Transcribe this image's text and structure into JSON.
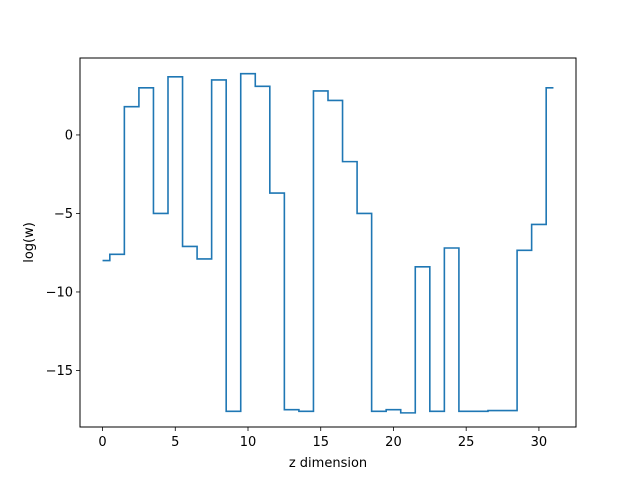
{
  "chart_data": {
    "type": "line",
    "drawstyle": "steps-mid",
    "xlabel": "z dimension",
    "ylabel": "log(w)",
    "xlim": [
      -1.55,
      32.55
    ],
    "ylim": [
      -18.6,
      4.9
    ],
    "xticks": [
      0,
      5,
      10,
      15,
      20,
      25,
      30
    ],
    "yticks": [
      -15,
      -10,
      -5,
      0
    ],
    "ytick_labels": [
      "−15",
      "−10",
      "−5",
      "0"
    ],
    "grid": false,
    "line_color": "#1f77b4",
    "series": [
      {
        "x": [
          0,
          1,
          2,
          3,
          4,
          5,
          6,
          7,
          8,
          9,
          10,
          11,
          12,
          13,
          14,
          15,
          16,
          17,
          18,
          19,
          20,
          21,
          22,
          23,
          24,
          25,
          26,
          27,
          28,
          29,
          30,
          31
        ],
        "values": [
          -8.0,
          -7.6,
          1.8,
          3.0,
          -5.0,
          3.7,
          -7.1,
          -7.9,
          3.5,
          -17.6,
          3.9,
          3.1,
          -3.7,
          -17.5,
          -17.6,
          2.8,
          2.2,
          -1.7,
          -5.0,
          -17.6,
          -17.5,
          -17.7,
          -8.4,
          -17.6,
          -7.2,
          -17.6,
          -17.6,
          -17.55,
          -17.55,
          -7.35,
          -5.7,
          3.0
        ]
      }
    ]
  }
}
